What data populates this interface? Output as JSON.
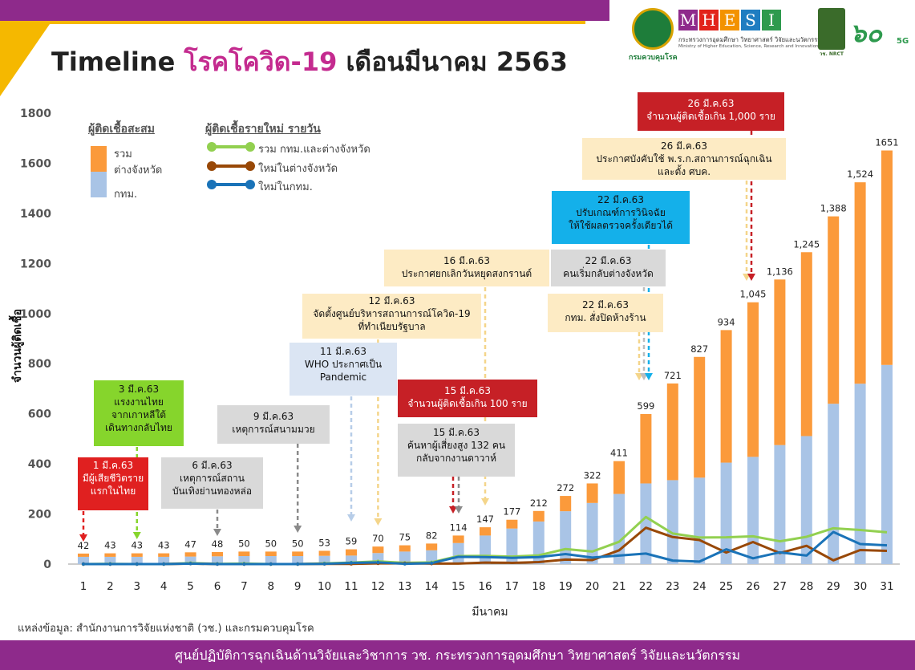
{
  "header": {
    "title_prefix": "Timeline ",
    "title_highlight": "โรคโควิด-19",
    "title_suffix": " เดือนมีนาคม 2563"
  },
  "logos": {
    "dept_label": "กรมควบคุมโรค",
    "mhesi_letters": [
      "M",
      "H",
      "E",
      "S",
      "I"
    ],
    "mhesi_colors": [
      "#8e2a8b",
      "#e2231a",
      "#f39200",
      "#1f7dc1",
      "#2e9a4e"
    ],
    "mhesi_th": "กระทรวงการอุดมศึกษา วิทยาศาสตร์ วิจัยและนวัตกรรม",
    "mhesi_en": "Ministry of Higher Education, Science, Research and Innovation",
    "nrct_label": "วช. NRCT",
    "anniversary": "๖๐",
    "anniversary_suffix": "5G"
  },
  "legend": {
    "cumulative_heading": "ผู้ติดเชื้อสะสม",
    "total_label": "รวม",
    "province_label": "ต่างจังหวัด",
    "bkk_label": "กทม.",
    "daily_heading": "ผู้ติดเชื้อรายใหม่ รายวัน",
    "line_total_label": "รวม กทม.และต่างจังหวัด",
    "line_province_label": "ใหม่ในต่างจังหวัด",
    "line_bkk_label": "ใหม่ในกทม."
  },
  "annotations": [
    {
      "lines": [
        "1 มี.ค.63",
        "มีผู้เสียชีวิตราย",
        "แรกในไทย"
      ],
      "style": "red"
    },
    {
      "lines": [
        "3 มี.ค.63",
        "แรงงานไทย",
        "จากเกาหลีใต้",
        "เดินทางกลับไทย"
      ],
      "style": "green"
    },
    {
      "lines": [
        "6 มี.ค.63",
        "เหตุการณ์สถาน",
        "บันเทิงย่านทองหล่อ"
      ],
      "style": "gray"
    },
    {
      "lines": [
        "9 มี.ค.63",
        "เหตุการณ์สนามมวย"
      ],
      "style": "gray"
    },
    {
      "lines": [
        "11 มี.ค.63",
        "WHO ประกาศเป็น",
        "Pandemic"
      ],
      "style": "lblue"
    },
    {
      "lines": [
        "12 มี.ค.63",
        "จัดตั้งศูนย์บริหารสถานการณ์โควิด-19",
        "ที่ทำเนียบรัฐบาล"
      ],
      "style": "cream"
    },
    {
      "lines": [
        "15 มี.ค.63",
        "จำนวนผู้ติดเชื้อเกิน 100 ราย"
      ],
      "style": "dred"
    },
    {
      "lines": [
        "15 มี.ค.63",
        "ค้นหาผู้เสี่ยงสูง 132 คน",
        "กลับจากงานดาวาห์"
      ],
      "style": "gray"
    },
    {
      "lines": [
        "16 มี.ค.63",
        "ประกาศยกเลิกวันหยุดสงกรานต์"
      ],
      "style": "cream"
    },
    {
      "lines": [
        "22 มี.ค.63",
        "ปรับเกณฑ์การวินิจฉัย",
        "ให้ใช้ผลตรวจครั้งเดียวได้"
      ],
      "style": "cyan"
    },
    {
      "lines": [
        "22 มี.ค.63",
        "คนเริ่มกลับต่างจังหวัด"
      ],
      "style": "gray"
    },
    {
      "lines": [
        "22 มี.ค.63",
        "กทม. สั่งปิดห้างร้าน"
      ],
      "style": "cream"
    },
    {
      "lines": [
        "26 มี.ค.63",
        "จำนวนผู้ติดเชื้อเกิน 1,000 ราย"
      ],
      "style": "dred"
    },
    {
      "lines": [
        "26 มี.ค.63",
        "ประกาศบังคับใช้ พ.ร.ก.สถานการณ์ฉุกเฉิน",
        "และตั้ง ศบค."
      ],
      "style": "cream"
    }
  ],
  "chart_data": {
    "type": "bar",
    "xlabel": "มีนาคม",
    "ylabel": "จำนวนผู้ติดเชื้อ",
    "ylim": [
      0,
      1800
    ],
    "yticks": [
      0,
      200,
      400,
      600,
      800,
      1000,
      1200,
      1400,
      1600,
      1800
    ],
    "categories": [
      "1",
      "2",
      "3",
      "4",
      "5",
      "6",
      "7",
      "8",
      "9",
      "10",
      "11",
      "12",
      "13",
      "14",
      "15",
      "16",
      "17",
      "18",
      "19",
      "20",
      "21",
      "22",
      "23",
      "24",
      "25",
      "26",
      "27",
      "28",
      "29",
      "30",
      "31"
    ],
    "total_labels": [
      "42",
      "43",
      "43",
      "43",
      "47",
      "48",
      "50",
      "50",
      "50",
      "53",
      "59",
      "70",
      "75",
      "82",
      "114",
      "147",
      "177",
      "212",
      "272",
      "322",
      "411",
      "599",
      "721",
      "827",
      "934",
      "1,045",
      "1,136",
      "1,245",
      "1,388",
      "1,524",
      "1651"
    ],
    "series": [
      {
        "name": "กทม.",
        "color": "#a9c4e6",
        "values": [
          29,
          29,
          29,
          29,
          30,
          31,
          32,
          32,
          32,
          33,
          34,
          44,
          50,
          55,
          84,
          114,
          142,
          170,
          211,
          244,
          280,
          322,
          335,
          345,
          405,
          428,
          475,
          511,
          640,
          720,
          795
        ]
      },
      {
        "name": "ต่างจังหวัด",
        "color": "#fb9a3b",
        "values": [
          13,
          14,
          14,
          14,
          17,
          17,
          18,
          18,
          18,
          20,
          25,
          26,
          25,
          27,
          30,
          33,
          35,
          42,
          61,
          78,
          131,
          277,
          386,
          482,
          529,
          617,
          661,
          734,
          748,
          804,
          856
        ]
      },
      {
        "name": "รวม กทม.และต่างจังหวัด",
        "color": "#92d050",
        "values": [
          0,
          1,
          0,
          0,
          4,
          1,
          2,
          0,
          0,
          3,
          6,
          11,
          5,
          7,
          32,
          33,
          30,
          35,
          60,
          50,
          89,
          188,
          122,
          106,
          107,
          111,
          91,
          109,
          143,
          136,
          127
        ]
      },
      {
        "name": "ใหม่ในต่างจังหวัด",
        "color": "#984807",
        "values": [
          0,
          0,
          0,
          0,
          2,
          0,
          0,
          0,
          0,
          1,
          1,
          3,
          3,
          2,
          2,
          6,
          5,
          8,
          18,
          16,
          55,
          145,
          108,
          96,
          46,
          88,
          44,
          73,
          15,
          56,
          53
        ]
      },
      {
        "name": "ใหม่ในกทม.",
        "color": "#1a73b8",
        "values": [
          0,
          0,
          0,
          0,
          2,
          0,
          0,
          0,
          0,
          1,
          5,
          7,
          1,
          4,
          29,
          28,
          25,
          28,
          40,
          26,
          34,
          42,
          14,
          10,
          59,
          23,
          47,
          34,
          128,
          80,
          75
        ]
      }
    ]
  },
  "footer": {
    "source": "แหล่งข้อมูล: สำนักงานการวิจัยแห่งชาติ (วช.) และกรมควบคุมโรค",
    "banner": "ศูนย์ปฏิบัติการฉุกเฉินด้านวิจัยและวิชาการ   วช.   กระทรวงการอุดมศึกษา วิทยาศาสตร์ วิจัยและนวัตกรรม"
  }
}
